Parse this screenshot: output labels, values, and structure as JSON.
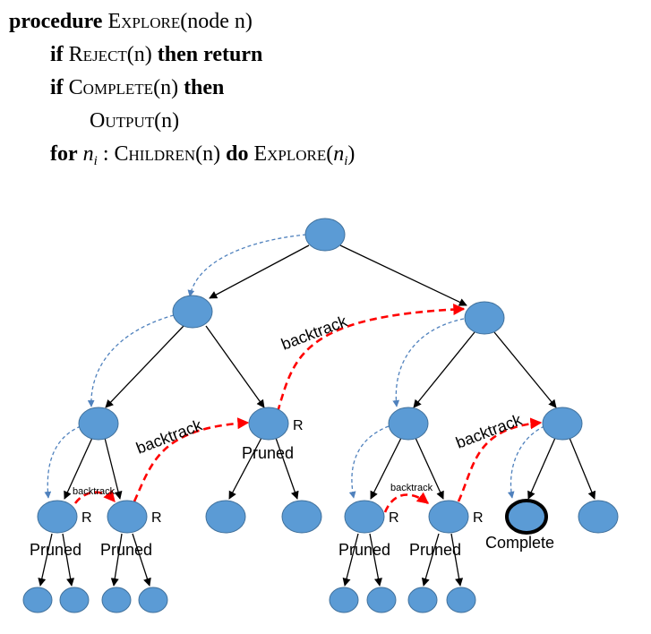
{
  "pseudocode": {
    "kw_procedure": "procedure",
    "explore": "Explore",
    "node_param": "(node n)",
    "kw_if": "if",
    "reject": "Reject",
    "n_arg": "(n)",
    "kw_then_return": "then return",
    "complete": "Complete",
    "kw_then": "then",
    "output": "Output",
    "kw_for": "for",
    "n_i_base": "n",
    "n_i_sub": "i",
    "colon": ":",
    "children": "Children",
    "kw_do": "do",
    "explore_open": "(",
    "explore_close": ")"
  },
  "diagram": {
    "backtrack_label": "backtrack",
    "reject_marker": "R",
    "pruned_label": "Pruned",
    "complete_label": "Complete",
    "colors": {
      "node_fill": "#5b9bd5",
      "node_stroke": "#41719c",
      "edge": "#000000",
      "dfs_arrow": "#4f81bd",
      "backtrack_arrow": "#ff0000",
      "complete_outline": "#000000"
    }
  }
}
